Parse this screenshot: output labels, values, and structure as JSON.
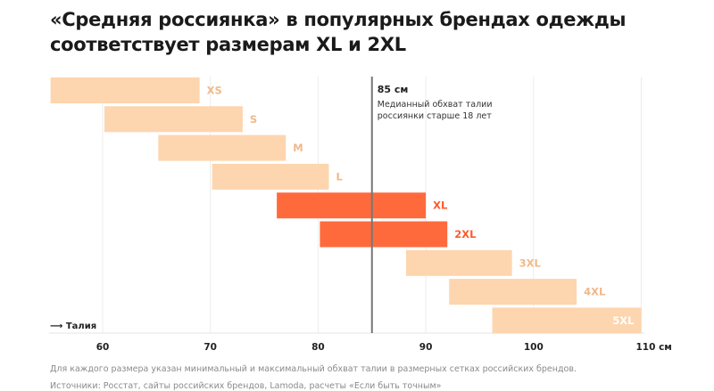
{
  "title_line1": "«Средняя россиянка» в популярных брендах одежды",
  "title_line2": "соответствует размерам XL и 2XL",
  "chart_data": {
    "type": "bar",
    "orientation": "horizontal-range",
    "title": "«Средняя россиянка» в популярных брендах одежды соответствует размерам XL и 2XL",
    "xlabel": "Талия",
    "x_unit": "см",
    "xlim": [
      55,
      110
    ],
    "xticks": [
      60,
      70,
      80,
      90,
      100,
      110
    ],
    "xtick_labels": [
      "60",
      "70",
      "80",
      "90",
      "100",
      "110 см"
    ],
    "grid": true,
    "categories": [
      "XS",
      "S",
      "M",
      "L",
      "XL",
      "2XL",
      "3XL",
      "4XL",
      "5XL"
    ],
    "ranges": [
      [
        55,
        69
      ],
      [
        60,
        73
      ],
      [
        65,
        77
      ],
      [
        70,
        81
      ],
      [
        76,
        90
      ],
      [
        80,
        92
      ],
      [
        88,
        98
      ],
      [
        92,
        104
      ],
      [
        96,
        110
      ]
    ],
    "highlighted": [
      "XL",
      "2XL"
    ],
    "colors": {
      "normal": "#fdd5ae",
      "highlight": "#ff6a3d",
      "normal_label": "#f0b98a",
      "highlight_label": "#ff5a2a",
      "reference": "#777777"
    },
    "reference_line": {
      "value": 85,
      "label": "85 см",
      "annotation_line1": "Медианный обхват талии",
      "annotation_line2": "россиянки старше 18 лет"
    }
  },
  "footnote": "Для каждого размера указан минимальный и максимальный обхват талии в размерных сетках российских брендов.",
  "sources": "Источники: Росстат, сайты российских брендов, Lamoda, расчеты «Если быть точным»"
}
